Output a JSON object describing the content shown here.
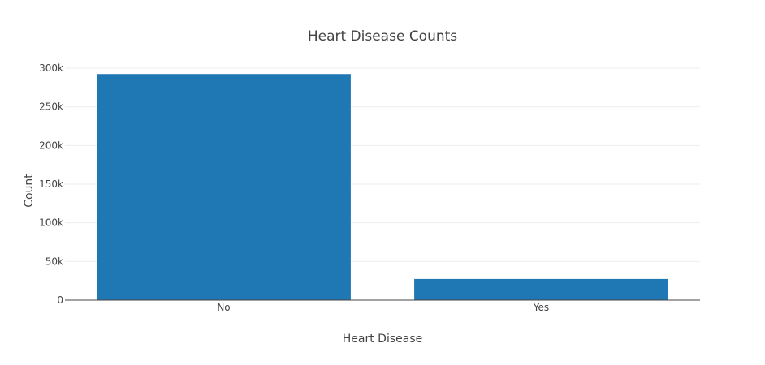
{
  "chart_data": {
    "type": "bar",
    "title": "Heart Disease Counts",
    "xlabel": "Heart Disease",
    "ylabel": "Count",
    "categories": [
      "No",
      "Yes"
    ],
    "values": [
      292422,
      27373
    ],
    "ylim": [
      0,
      300000
    ],
    "yticks": [
      0,
      50000,
      100000,
      150000,
      200000,
      250000,
      300000
    ],
    "ytick_labels": [
      "0",
      "50k",
      "100k",
      "150k",
      "200k",
      "250k",
      "300k"
    ],
    "grid": true,
    "bar_color": "#1f77b4",
    "grid_color": "#eeeeee",
    "axis_color": "#444444"
  }
}
